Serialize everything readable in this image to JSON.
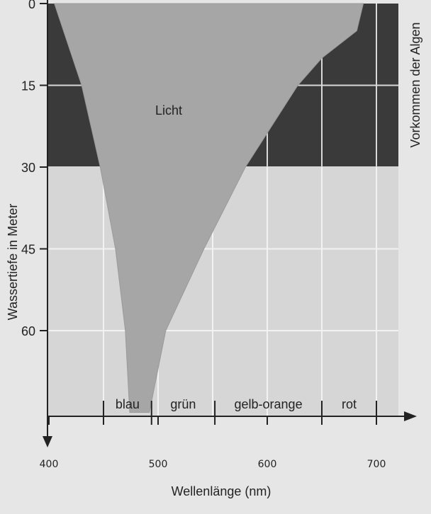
{
  "chart_data": {
    "type": "area",
    "title": "",
    "xlabel": "Wellenlänge (nm)",
    "ylabel": "Wassertiefe in Meter",
    "right_label": "Vorkommen der Algen",
    "area_label": "Licht",
    "xlim": [
      400,
      710
    ],
    "ylim": [
      0,
      75
    ],
    "x_ticks": [
      400,
      500,
      600,
      700
    ],
    "y_ticks": [
      0,
      15,
      30,
      45,
      60
    ],
    "algae_zone_depth": [
      0,
      30
    ],
    "color_bands": [
      {
        "label": "blau",
        "from": 450,
        "to": 494
      },
      {
        "label": "grün",
        "from": 494,
        "to": 552
      },
      {
        "label": "gelb-orange",
        "from": 552,
        "to": 650
      },
      {
        "label": "rot",
        "from": 650,
        "to": 700
      }
    ],
    "light_envelope": {
      "left_edge": [
        {
          "depth": 0,
          "wavelength": 405
        },
        {
          "depth": 15,
          "wavelength": 430
        },
        {
          "depth": 30,
          "wavelength": 447
        },
        {
          "depth": 45,
          "wavelength": 461
        },
        {
          "depth": 60,
          "wavelength": 470
        },
        {
          "depth": 75,
          "wavelength": 474
        }
      ],
      "right_edge": [
        {
          "depth": 0,
          "wavelength": 688
        },
        {
          "depth": 5,
          "wavelength": 682
        },
        {
          "depth": 10,
          "wavelength": 650
        },
        {
          "depth": 15,
          "wavelength": 628
        },
        {
          "depth": 30,
          "wavelength": 580
        },
        {
          "depth": 45,
          "wavelength": 542
        },
        {
          "depth": 60,
          "wavelength": 507
        },
        {
          "depth": 75,
          "wavelength": 492
        }
      ]
    },
    "colors": {
      "background": "#e6e6e6",
      "algae_zone": "#3a3a3a",
      "light": "#a6a6a6",
      "grid_dark": "#d8d8d8",
      "grid_light": "#f2f2f2",
      "axis": "#222222"
    }
  }
}
